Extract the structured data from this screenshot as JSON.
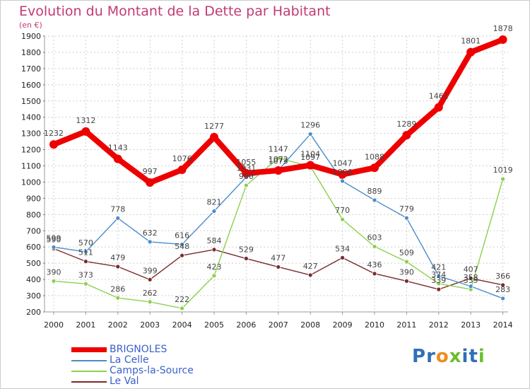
{
  "title": "Evolution du Montant de la Dette par Habitant",
  "subtitle": "(en €)",
  "logo": {
    "text": "Proxiti",
    "letters": [
      {
        "ch": "P",
        "color": "#2f6fb7"
      },
      {
        "ch": "r",
        "color": "#2f6fb7"
      },
      {
        "ch": "o",
        "color": "#f08c1e"
      },
      {
        "ch": "x",
        "color": "#6cbf2e"
      },
      {
        "ch": "i",
        "color": "#2f6fb7"
      },
      {
        "ch": "t",
        "color": "#2f6fb7"
      },
      {
        "ch": "i",
        "color": "#6cbf2e"
      }
    ]
  },
  "chart_data": {
    "type": "line",
    "title": "Evolution du Montant de la Dette par Habitant",
    "subtitle": "(en €)",
    "xlabel": "",
    "ylabel": "",
    "x": [
      2000,
      2001,
      2002,
      2003,
      2004,
      2005,
      2006,
      2007,
      2008,
      2009,
      2010,
      2011,
      2012,
      2013,
      2014
    ],
    "ylim": [
      200,
      1900
    ],
    "yticks": [
      200,
      300,
      400,
      500,
      600,
      700,
      800,
      900,
      1000,
      1100,
      1200,
      1300,
      1400,
      1500,
      1600,
      1700,
      1800,
      1900
    ],
    "grid": true,
    "legend": "bottom-left",
    "series": [
      {
        "name": "BRIGNOLES",
        "color": "#ee0000",
        "values": [
          1232,
          1312,
          1143,
          997,
          1076,
          1277,
          1055,
          1072,
          1104,
          1047,
          1088,
          1289,
          1461,
          1801,
          1878
        ],
        "labels": [
          "1232",
          "1312",
          "1143",
          "997",
          "1076",
          "1277",
          "1055",
          "1072",
          "1104",
          "1047",
          "1088",
          "1289",
          "1461",
          "1801",
          "1878"
        ]
      },
      {
        "name": "La Celle",
        "color": "#4a8cc8",
        "values": [
          599,
          570,
          778,
          632,
          616,
          821,
          1031,
          1073,
          1296,
          1006,
          889,
          779,
          421,
          358,
          283
        ],
        "labels": [
          "599",
          "570",
          "778",
          "632",
          "616",
          "821",
          "1031",
          "1073",
          "1296",
          "1006",
          "889",
          "779",
          "421",
          "358",
          "283"
        ]
      },
      {
        "name": "Camps-la-Source",
        "color": "#8bd04c",
        "values": [
          390,
          373,
          286,
          262,
          222,
          423,
          980,
          1147,
          1097,
          770,
          603,
          509,
          374,
          339,
          1019
        ],
        "labels": [
          "390",
          "373",
          "286",
          "262",
          "222",
          "423",
          "980",
          "1147",
          "1097",
          "770",
          "603",
          "509",
          "374",
          "339",
          "1019"
        ]
      },
      {
        "name": "Le Val",
        "color": "#7a2a2a",
        "values": [
          590,
          511,
          479,
          399,
          548,
          584,
          529,
          477,
          427,
          534,
          436,
          390,
          339,
          407,
          366
        ],
        "labels": [
          "590",
          "511",
          "479",
          "399",
          "548",
          "584",
          "529",
          "477",
          "427",
          "534",
          "436",
          "390",
          "339",
          "407",
          "366"
        ]
      }
    ]
  }
}
